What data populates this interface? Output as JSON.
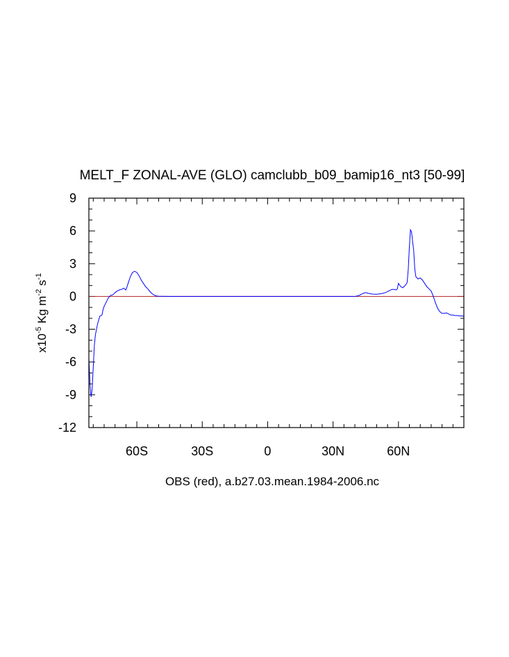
{
  "chart_data": {
    "type": "line",
    "title": "MELT_F ZONAL-AVE (GLO) camclubb_b09_bamip16_nt3 [50-99]",
    "xlabel": "OBS (red), a.b27.03.mean.1984-2006.nc",
    "ylabel": {
      "prefix": "x10",
      "exp": "-5",
      "unit_kg": " Kg m",
      "exp_m": "-2",
      "unit_s": " s",
      "exp_s": "-1"
    },
    "xlim": [
      -82,
      90
    ],
    "ylim": [
      -12,
      9
    ],
    "x_ticks": [
      -60,
      -30,
      0,
      30,
      60
    ],
    "x_tick_labels": [
      "60S",
      "30S",
      "0",
      "30N",
      "60N"
    ],
    "y_ticks": [
      9,
      6,
      3,
      0,
      -3,
      -6,
      -9,
      -12
    ],
    "y_tick_labels": [
      "9",
      "6",
      "3",
      "0",
      "-3",
      "-6",
      "-9",
      "-12"
    ],
    "series": [
      {
        "name": "camclubb_b09_bamip16_nt3",
        "color": "#0000ff",
        "x": [
          -82,
          -81.5,
          -81,
          -80.5,
          -80,
          -79.5,
          -79,
          -78,
          -77,
          -76,
          -75.5,
          -75,
          -74,
          -73,
          -72,
          -71,
          -70,
          -69,
          -68,
          -67,
          -66,
          -65,
          -64,
          -63,
          -62,
          -61,
          -60,
          -59,
          -58,
          -57,
          -56,
          -55,
          -54,
          -53,
          -52,
          -51,
          -50,
          -45,
          0,
          40,
          42,
          44,
          45,
          46,
          47,
          48,
          50,
          52,
          54,
          56,
          57,
          58,
          59,
          59.5,
          60,
          61,
          62,
          63,
          63.5,
          64,
          64.5,
          65,
          65.5,
          66,
          66.5,
          67,
          67.5,
          68,
          69,
          70,
          71,
          72,
          73,
          74,
          75,
          76,
          77,
          78,
          79,
          80,
          81,
          82,
          83,
          84,
          85,
          86,
          87,
          88,
          89,
          90
        ],
        "y": [
          -5.7,
          -8.0,
          -9.2,
          -8.5,
          -6.5,
          -4.5,
          -3.5,
          -2.5,
          -1.8,
          -1.7,
          -1.2,
          -0.9,
          -0.5,
          -0.1,
          0.1,
          0.15,
          0.35,
          0.5,
          0.6,
          0.65,
          0.75,
          0.6,
          1.2,
          1.8,
          2.2,
          2.3,
          2.2,
          1.9,
          1.5,
          1.2,
          0.9,
          0.7,
          0.45,
          0.25,
          0.12,
          0.05,
          0.02,
          0.0,
          0.0,
          0.0,
          0.1,
          0.3,
          0.35,
          0.3,
          0.25,
          0.22,
          0.2,
          0.25,
          0.35,
          0.55,
          0.65,
          0.65,
          0.6,
          0.7,
          1.2,
          0.9,
          0.8,
          1.0,
          1.1,
          1.3,
          2.5,
          4.5,
          6.1,
          5.9,
          5.0,
          4.2,
          2.5,
          1.8,
          1.6,
          1.7,
          1.5,
          1.2,
          0.9,
          0.7,
          0.5,
          0.0,
          -0.6,
          -1.1,
          -1.4,
          -1.55,
          -1.55,
          -1.5,
          -1.6,
          -1.7,
          -1.7,
          -1.75,
          -1.75,
          -1.78,
          -1.78,
          -1.8
        ]
      },
      {
        "name": "OBS",
        "color": "#b22222",
        "x": [
          -82,
          90
        ],
        "y": [
          0,
          0
        ]
      }
    ]
  }
}
